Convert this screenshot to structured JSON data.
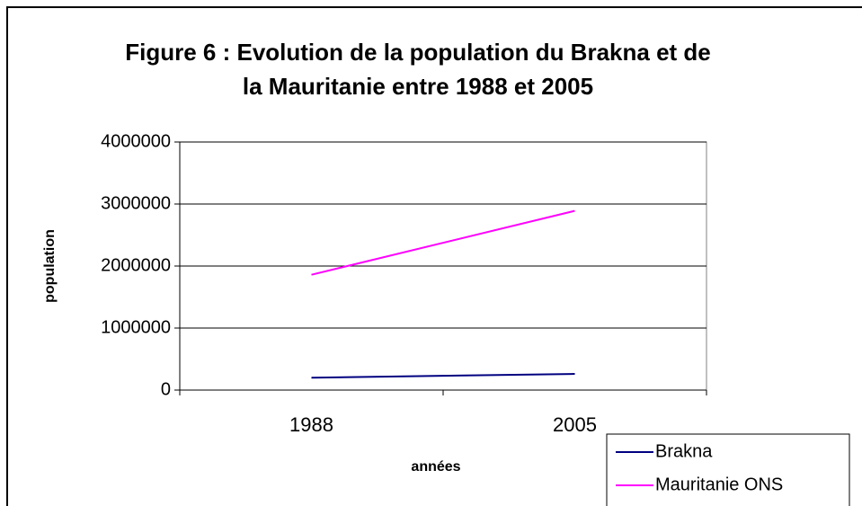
{
  "chart_data": {
    "type": "line",
    "title": [
      "Figure 6 : Evolution de la population du Brakna et de",
      "la Mauritanie entre 1988 et 2005"
    ],
    "x_label": "années",
    "y_label": "population",
    "categories": [
      "1988",
      "2005"
    ],
    "series": [
      {
        "name": "Brakna",
        "color": "#000080",
        "values": [
          200000,
          260000
        ]
      },
      {
        "name": "Mauritanie ONS",
        "color": "#ff00ff",
        "values": [
          1860000,
          2890000
        ]
      }
    ],
    "ylim": [
      0,
      4000000
    ],
    "yticks": [
      0,
      1000000,
      2000000,
      3000000,
      4000000
    ],
    "grid": true,
    "legend": "bottom-right"
  }
}
